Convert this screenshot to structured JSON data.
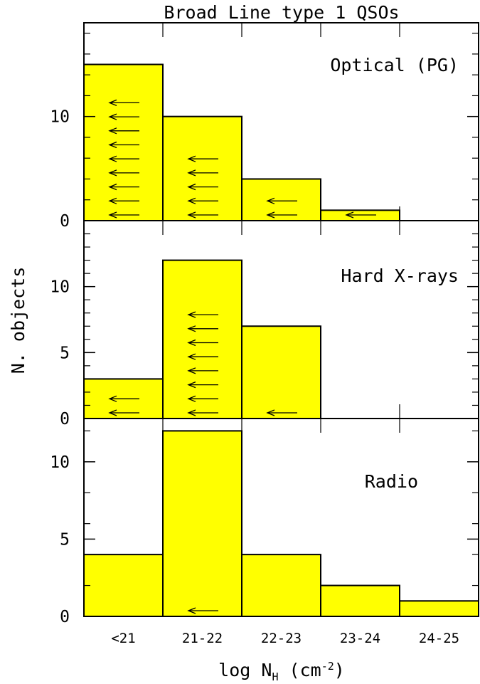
{
  "chart_data": {
    "type": "bar",
    "title": "Broad Line type 1 QSOs",
    "xlabel_main": "log N",
    "xlabel_sub": "H",
    "xlabel_unit_open": " (cm",
    "xlabel_exp": "-2",
    "xlabel_unit_close": ")",
    "ylabel": "N. objects",
    "categories": [
      "<21",
      "21-22",
      "22-23",
      "23-24",
      "24-25"
    ],
    "bar_color": "#ffff00",
    "panels": [
      {
        "name": "Optical (PG)",
        "values": [
          15,
          10,
          4,
          1,
          0
        ],
        "upper_limits": [
          9,
          5,
          2,
          1,
          0
        ],
        "ylim": [
          0,
          19
        ],
        "yticks": [
          0,
          10
        ],
        "minor_ticks": [
          2,
          4,
          6,
          8,
          12,
          14,
          16,
          18
        ]
      },
      {
        "name": "Hard X-rays",
        "values": [
          3,
          12,
          7,
          0,
          0
        ],
        "upper_limits": [
          2,
          8,
          1,
          0,
          0
        ],
        "ylim": [
          0,
          15
        ],
        "yticks": [
          0,
          5,
          10
        ],
        "minor_ticks": [
          1,
          2,
          3,
          4,
          6,
          7,
          8,
          9,
          11,
          12,
          13,
          14
        ]
      },
      {
        "name": "Radio",
        "values": [
          4,
          12,
          4,
          2,
          1
        ],
        "upper_limits": [
          0,
          1,
          0,
          0,
          0
        ],
        "ylim": [
          0,
          12.8
        ],
        "yticks": [
          0,
          5,
          10
        ],
        "minor_ticks": [
          2,
          4,
          6,
          8,
          12
        ]
      }
    ]
  }
}
